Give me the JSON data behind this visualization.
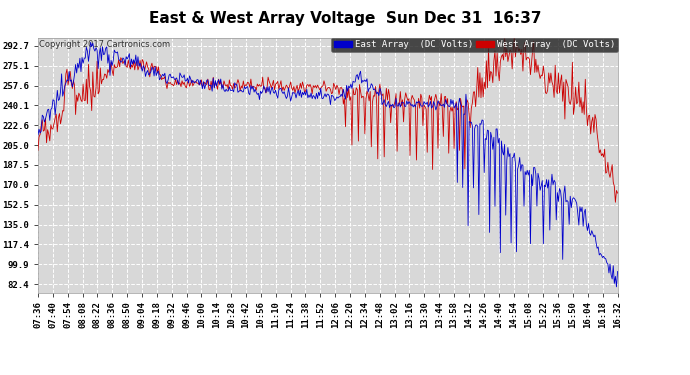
{
  "title": "East & West Array Voltage  Sun Dec 31  16:37",
  "copyright": "Copyright 2017 Cartronics.com",
  "legend_east": "East Array  (DC Volts)",
  "legend_west": "West Array  (DC Volts)",
  "east_color": "#0000cc",
  "west_color": "#cc0000",
  "legend_east_bg": "#0000cc",
  "legend_west_bg": "#cc0000",
  "yticks": [
    82.4,
    99.9,
    117.4,
    135.0,
    152.5,
    170.0,
    187.5,
    205.0,
    222.6,
    240.1,
    257.6,
    275.1,
    292.7
  ],
  "ymin": 75.0,
  "ymax": 300.0,
  "bg_color": "#ffffff",
  "plot_bg_color": "#d8d8d8",
  "grid_color": "#ffffff",
  "title_fontsize": 11,
  "tick_fontsize": 6.5,
  "xtick_labels": [
    "07:36",
    "07:40",
    "07:54",
    "08:08",
    "08:22",
    "08:36",
    "08:50",
    "09:04",
    "09:18",
    "09:32",
    "09:46",
    "10:00",
    "10:14",
    "10:28",
    "10:42",
    "10:56",
    "11:10",
    "11:24",
    "11:38",
    "11:52",
    "12:06",
    "12:20",
    "12:34",
    "12:48",
    "13:02",
    "13:16",
    "13:30",
    "13:44",
    "13:58",
    "14:12",
    "14:26",
    "14:40",
    "14:54",
    "15:08",
    "15:22",
    "15:36",
    "15:50",
    "16:04",
    "16:18",
    "16:32"
  ]
}
